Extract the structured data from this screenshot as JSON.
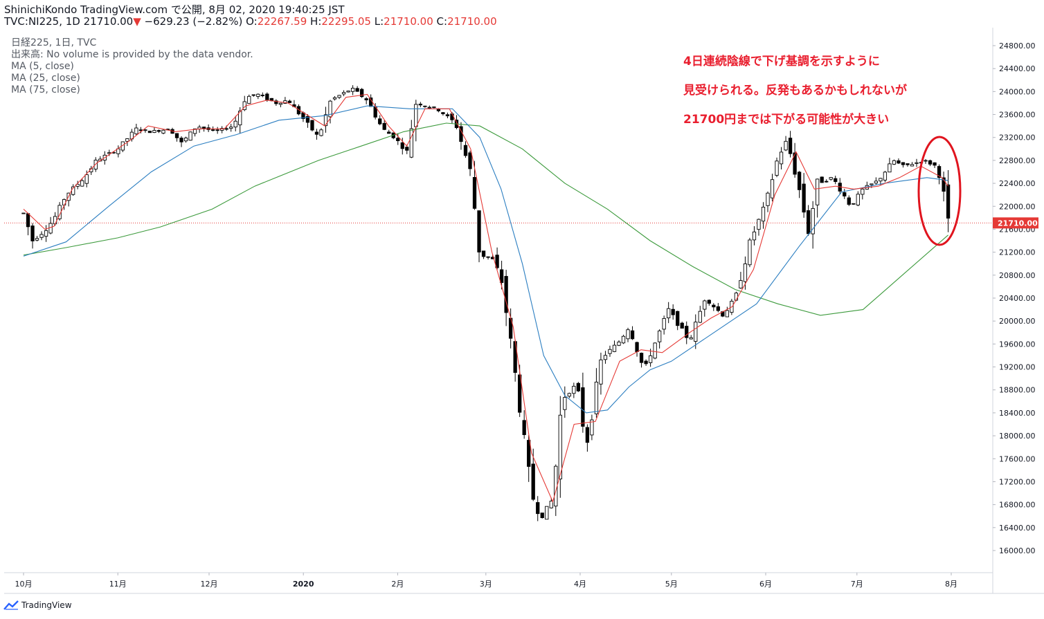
{
  "header": {
    "publisher": "ShinichiKondo TradingView.com で公開, 8月 02, 2020 19:40:25 JST"
  },
  "quote": {
    "symbol": "TVC:NI225, 1D",
    "last": "21710.00",
    "arrow": "▼",
    "change": "−629.23 (−2.82%)",
    "o_label": "O:",
    "o": "22267.59",
    "h_label": "H:",
    "h": "22295.05",
    "l_label": "L:",
    "l": "21710.00",
    "c_label": "C:",
    "c": "21710.00"
  },
  "legend": {
    "title": "日経225, 1日, TVC",
    "volume": "出来高: No volume is provided by the data vendor.",
    "ma5": "MA (5, close)",
    "ma25": "MA (25, close)",
    "ma75": "MA (75, close)"
  },
  "annotation": {
    "line1": "4日連続陰線で下げ基調を示すように",
    "line2": "見受けられる。反発もあるかもしれないが",
    "line3": "21700円までは下がる可能性が大きい"
  },
  "footer": {
    "brand": "TradingView"
  },
  "colors": {
    "ma5": "#e53935",
    "ma25": "#2b7ec1",
    "ma75": "#3c9a3c",
    "candle": "#000000",
    "price_line": "#e53935",
    "circle": "#e0141e"
  },
  "chart_data": {
    "type": "candlestick",
    "ylim": [
      15600,
      25000
    ],
    "yticks": [
      16000,
      16400,
      16800,
      17200,
      17600,
      18000,
      18400,
      18800,
      19200,
      19600,
      20000,
      20400,
      20800,
      21200,
      21600,
      22000,
      22400,
      22800,
      23200,
      23600,
      24000,
      24400,
      24800
    ],
    "last_price_label": "21710.00",
    "last_price": 21710,
    "xticks": [
      "10月",
      "11月",
      "12月",
      "2020",
      "2月",
      "3月",
      "4月",
      "5月",
      "6月",
      "7月",
      "8月"
    ],
    "price_points": [
      [
        "2019-10-01",
        21880
      ],
      [
        "2019-10-04",
        21400
      ],
      [
        "2019-10-08",
        21580
      ],
      [
        "2019-10-11",
        21780
      ],
      [
        "2019-10-15",
        22200
      ],
      [
        "2019-10-21",
        22500
      ],
      [
        "2019-10-25",
        22800
      ],
      [
        "2019-11-01",
        23000
      ],
      [
        "2019-11-07",
        23350
      ],
      [
        "2019-11-12",
        23300
      ],
      [
        "2019-11-18",
        23350
      ],
      [
        "2019-11-22",
        23100
      ],
      [
        "2019-11-27",
        23400
      ],
      [
        "2019-12-03",
        23300
      ],
      [
        "2019-12-09",
        23400
      ],
      [
        "2019-12-13",
        23900
      ],
      [
        "2019-12-17",
        23950
      ],
      [
        "2019-12-23",
        23800
      ],
      [
        "2019-12-27",
        23850
      ],
      [
        "2020-01-06",
        23200
      ],
      [
        "2020-01-10",
        23850
      ],
      [
        "2020-01-17",
        24050
      ],
      [
        "2020-01-22",
        23850
      ],
      [
        "2020-01-27",
        23350
      ],
      [
        "2020-01-31",
        23200
      ],
      [
        "2020-02-04",
        22950
      ],
      [
        "2020-02-07",
        23800
      ],
      [
        "2020-02-14",
        23700
      ],
      [
        "2020-02-20",
        23450
      ],
      [
        "2020-02-25",
        22600
      ],
      [
        "2020-02-28",
        21150
      ],
      [
        "2020-03-03",
        21100
      ],
      [
        "2020-03-06",
        20750
      ],
      [
        "2020-03-09",
        19700
      ],
      [
        "2020-03-12",
        18550
      ],
      [
        "2020-03-16",
        17000
      ],
      [
        "2020-03-19",
        16550
      ],
      [
        "2020-03-23",
        16900
      ],
      [
        "2020-03-26",
        18650
      ],
      [
        "2020-03-31",
        18900
      ],
      [
        "2020-04-03",
        17800
      ],
      [
        "2020-04-08",
        19350
      ],
      [
        "2020-04-14",
        19650
      ],
      [
        "2020-04-17",
        19900
      ],
      [
        "2020-04-22",
        19150
      ],
      [
        "2020-04-27",
        19800
      ],
      [
        "2020-04-30",
        20200
      ],
      [
        "2020-05-07",
        19650
      ],
      [
        "2020-05-12",
        20400
      ],
      [
        "2020-05-18",
        20100
      ],
      [
        "2020-05-22",
        20400
      ],
      [
        "2020-05-27",
        21400
      ],
      [
        "2020-06-01",
        22050
      ],
      [
        "2020-06-05",
        22850
      ],
      [
        "2020-06-08",
        23150
      ],
      [
        "2020-06-12",
        22300
      ],
      [
        "2020-06-15",
        21550
      ],
      [
        "2020-06-18",
        22400
      ],
      [
        "2020-06-23",
        22500
      ],
      [
        "2020-06-29",
        22000
      ],
      [
        "2020-07-03",
        22300
      ],
      [
        "2020-07-08",
        22450
      ],
      [
        "2020-07-13",
        22800
      ],
      [
        "2020-07-16",
        22700
      ],
      [
        "2020-07-20",
        22750
      ],
      [
        "2020-07-23",
        22800
      ],
      [
        "2020-07-27",
        22700
      ],
      [
        "2020-07-29",
        22400
      ],
      [
        "2020-07-31",
        21710
      ]
    ],
    "ma5": [
      [
        "2019-10-01",
        21950
      ],
      [
        "2019-10-08",
        21600
      ],
      [
        "2019-10-11",
        21650
      ],
      [
        "2019-10-17",
        22300
      ],
      [
        "2019-10-25",
        22750
      ],
      [
        "2019-11-05",
        23150
      ],
      [
        "2019-11-11",
        23400
      ],
      [
        "2019-11-20",
        23300
      ],
      [
        "2019-11-28",
        23350
      ],
      [
        "2019-12-06",
        23350
      ],
      [
        "2019-12-13",
        23750
      ],
      [
        "2019-12-20",
        23850
      ],
      [
        "2019-12-27",
        23800
      ],
      [
        "2020-01-08",
        23400
      ],
      [
        "2020-01-15",
        23900
      ],
      [
        "2020-01-22",
        23950
      ],
      [
        "2020-01-29",
        23400
      ],
      [
        "2020-02-04",
        23050
      ],
      [
        "2020-02-10",
        23700
      ],
      [
        "2020-02-18",
        23700
      ],
      [
        "2020-02-25",
        23000
      ],
      [
        "2020-03-03",
        21200
      ],
      [
        "2020-03-10",
        19900
      ],
      [
        "2020-03-16",
        17700
      ],
      [
        "2020-03-23",
        16850
      ],
      [
        "2020-03-30",
        18200
      ],
      [
        "2020-04-06",
        18250
      ],
      [
        "2020-04-14",
        19300
      ],
      [
        "2020-04-21",
        19500
      ],
      [
        "2020-04-28",
        19450
      ],
      [
        "2020-05-07",
        19800
      ],
      [
        "2020-05-14",
        20050
      ],
      [
        "2020-05-21",
        20250
      ],
      [
        "2020-05-28",
        20900
      ],
      [
        "2020-06-04",
        22200
      ],
      [
        "2020-06-11",
        22950
      ],
      [
        "2020-06-17",
        22300
      ],
      [
        "2020-06-24",
        22350
      ],
      [
        "2020-06-30",
        22300
      ],
      [
        "2020-07-08",
        22350
      ],
      [
        "2020-07-15",
        22500
      ],
      [
        "2020-07-22",
        22700
      ],
      [
        "2020-07-29",
        22500
      ],
      [
        "2020-07-31",
        22350
      ]
    ],
    "ma25": [
      [
        "2019-10-01",
        21130
      ],
      [
        "2019-10-15",
        21380
      ],
      [
        "2019-10-29",
        22000
      ],
      [
        "2019-11-12",
        22600
      ],
      [
        "2019-11-26",
        23050
      ],
      [
        "2019-12-10",
        23250
      ],
      [
        "2019-12-24",
        23500
      ],
      [
        "2020-01-08",
        23580
      ],
      [
        "2020-01-22",
        23750
      ],
      [
        "2020-02-05",
        23700
      ],
      [
        "2020-02-19",
        23700
      ],
      [
        "2020-02-28",
        23200
      ],
      [
        "2020-03-06",
        22300
      ],
      [
        "2020-03-13",
        21000
      ],
      [
        "2020-03-20",
        19400
      ],
      [
        "2020-03-27",
        18700
      ],
      [
        "2020-04-03",
        18400
      ],
      [
        "2020-04-10",
        18450
      ],
      [
        "2020-04-17",
        18850
      ],
      [
        "2020-04-24",
        19150
      ],
      [
        "2020-05-01",
        19300
      ],
      [
        "2020-05-15",
        19800
      ],
      [
        "2020-05-29",
        20300
      ],
      [
        "2020-06-12",
        21300
      ],
      [
        "2020-06-26",
        22250
      ],
      [
        "2020-07-10",
        22400
      ],
      [
        "2020-07-24",
        22500
      ],
      [
        "2020-07-31",
        22450
      ]
    ],
    "ma75": [
      [
        "2019-10-01",
        21150
      ],
      [
        "2019-10-15",
        21280
      ],
      [
        "2019-11-01",
        21450
      ],
      [
        "2019-11-15",
        21640
      ],
      [
        "2019-12-02",
        21950
      ],
      [
        "2019-12-16",
        22350
      ],
      [
        "2020-01-06",
        22800
      ],
      [
        "2020-01-20",
        23050
      ],
      [
        "2020-02-03",
        23300
      ],
      [
        "2020-02-17",
        23450
      ],
      [
        "2020-02-28",
        23400
      ],
      [
        "2020-03-13",
        23000
      ],
      [
        "2020-03-27",
        22400
      ],
      [
        "2020-04-10",
        21950
      ],
      [
        "2020-04-24",
        21400
      ],
      [
        "2020-05-08",
        20950
      ],
      [
        "2020-05-22",
        20550
      ],
      [
        "2020-06-05",
        20300
      ],
      [
        "2020-06-19",
        20100
      ],
      [
        "2020-07-03",
        20200
      ],
      [
        "2020-07-17",
        20850
      ],
      [
        "2020-07-31",
        21500
      ]
    ]
  }
}
